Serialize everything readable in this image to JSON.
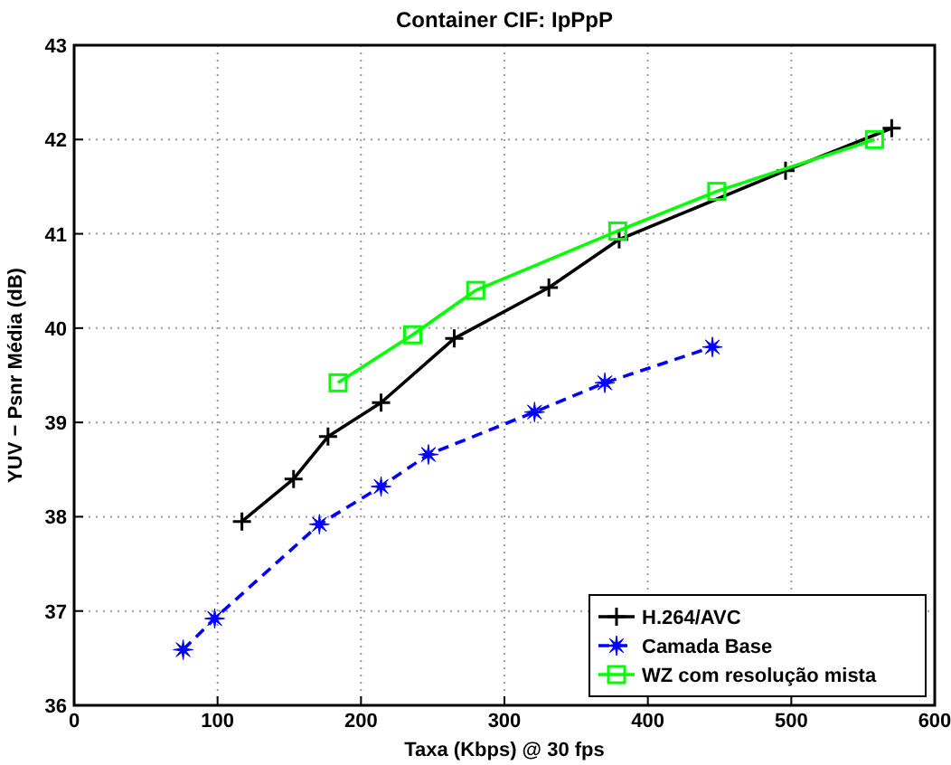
{
  "chart_data": {
    "type": "line",
    "title": "Container CIF: IpPpP",
    "xlabel": "Taxa (Kbps) @ 30 fps",
    "ylabel": "YUV − Psnr Média (dB)",
    "xlim": [
      0,
      600
    ],
    "xticks": [
      0,
      100,
      200,
      300,
      400,
      500,
      600
    ],
    "ylim": [
      36,
      43
    ],
    "yticks": [
      36,
      37,
      38,
      39,
      40,
      41,
      42,
      43
    ],
    "grid": true,
    "legend": "bottom right",
    "series": [
      {
        "name": "H.264/AVC",
        "color": "#000000",
        "marker": "cross",
        "line_style": "solid",
        "x": [
          117,
          153,
          177,
          214,
          265,
          331,
          380,
          496,
          570
        ],
        "values": [
          37.95,
          38.4,
          38.85,
          39.21,
          39.89,
          40.43,
          40.94,
          41.67,
          42.12
        ]
      },
      {
        "name": "Camada Base",
        "color": "#0000ff",
        "marker": "star",
        "line_style": "dashed",
        "x": [
          76,
          98,
          171,
          214,
          247,
          321,
          370,
          445
        ],
        "values": [
          36.59,
          36.92,
          37.92,
          38.32,
          38.66,
          39.11,
          39.42,
          39.8
        ]
      },
      {
        "name": "WZ com resolução mista",
        "color": "#00ff00",
        "marker": "square",
        "line_style": "solid",
        "x": [
          184,
          236,
          280,
          379,
          448,
          558
        ],
        "values": [
          39.42,
          39.93,
          40.4,
          41.03,
          41.45,
          42.0
        ]
      }
    ]
  }
}
